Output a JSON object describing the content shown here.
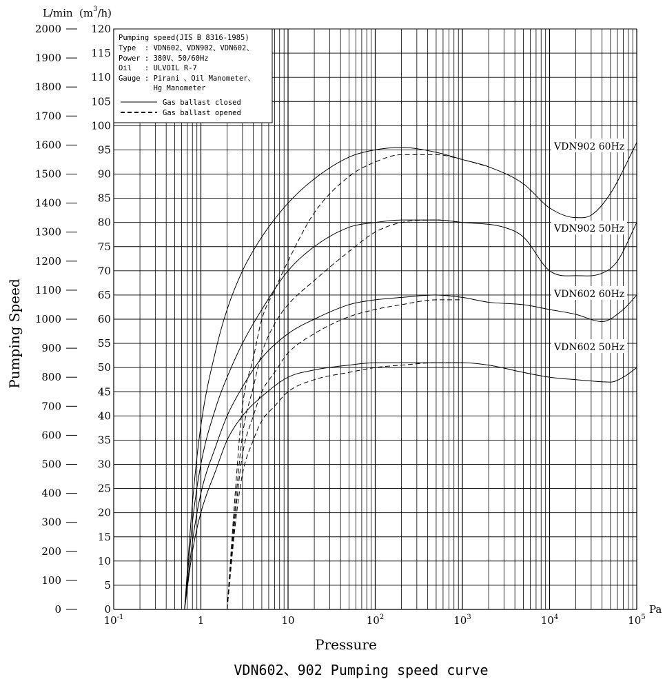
{
  "chart_data": {
    "type": "line",
    "title": "VDN602、902 Pumping speed curve",
    "xlabel": "Pressure",
    "x_unit": "Pa",
    "x_scale": "log",
    "xlim": [
      0.1,
      100000
    ],
    "x_tick_labels": [
      {
        "base": "10",
        "exp": "-1",
        "value": 0.1
      },
      {
        "base": "1",
        "exp": "",
        "value": 1
      },
      {
        "base": "10",
        "exp": "",
        "value": 10
      },
      {
        "base": "10",
        "exp": "2",
        "value": 100
      },
      {
        "base": "10",
        "exp": "3",
        "value": 1000
      },
      {
        "base": "10",
        "exp": "4",
        "value": 10000
      },
      {
        "base": "10",
        "exp": "5",
        "value": 100000
      }
    ],
    "ylabel": "Pumping Speed",
    "y_left_unit": "L/min",
    "y_right_unit_prefix": "(m",
    "y_right_unit_exp": "3",
    "y_right_unit_suffix": "/h)",
    "y_left_ticks": [
      "0",
      "100",
      "200",
      "300",
      "400",
      "500",
      "600",
      "700",
      "800",
      "900",
      "1000",
      "1100",
      "1200",
      "1300",
      "1400",
      "1500",
      "1600",
      "1700",
      "1800",
      "1900",
      "2000"
    ],
    "y_right_ticks": [
      "0",
      "5",
      "10",
      "15",
      "20",
      "25",
      "30",
      "35",
      "40",
      "45",
      "50",
      "55",
      "60",
      "65",
      "70",
      "75",
      "80",
      "85",
      "90",
      "95",
      "100",
      "105",
      "110",
      "115",
      "120"
    ],
    "ylim_m3h": [
      0,
      120
    ],
    "grid": true,
    "legend": {
      "position": "top-left",
      "lines": [
        "Pumping speed(JIS B 8316-1985)",
        "Type  : VDN602、VDN902、VDN602、",
        "Power : 380V、50/60Hz",
        "Oil   : ULVOIL R-7",
        "Gauge : Pirani 、Oil Manometer、",
        "        Hg Manometer"
      ],
      "entries": [
        {
          "label": "Gas ballast closed",
          "style": "solid"
        },
        {
          "label": "Gas ballast opened",
          "style": "dashed"
        }
      ]
    },
    "series": [
      {
        "name": "VDN902  60Hz",
        "ballast": "closed",
        "style": "solid",
        "points": [
          [
            0.65,
            0
          ],
          [
            0.8,
            22
          ],
          [
            1,
            38
          ],
          [
            1.5,
            54
          ],
          [
            2,
            62
          ],
          [
            3,
            70
          ],
          [
            5,
            77
          ],
          [
            10,
            84
          ],
          [
            20,
            89
          ],
          [
            50,
            93.5
          ],
          [
            100,
            95
          ],
          [
            200,
            95.5
          ],
          [
            500,
            94.5
          ],
          [
            1000,
            93
          ],
          [
            2000,
            91.5
          ],
          [
            5000,
            88
          ],
          [
            10000,
            83
          ],
          [
            20000,
            81
          ],
          [
            30000,
            81.5
          ],
          [
            50000,
            86
          ],
          [
            100000,
            96.5
          ]
        ]
      },
      {
        "name": "VDN902  60Hz",
        "ballast": "opened",
        "style": "dashed",
        "points": [
          [
            2,
            0
          ],
          [
            2.5,
            25
          ],
          [
            3,
            42
          ],
          [
            4,
            52
          ],
          [
            5,
            60
          ],
          [
            7,
            66
          ],
          [
            10,
            72
          ],
          [
            20,
            82
          ],
          [
            50,
            89.5
          ],
          [
            100,
            92.5
          ],
          [
            200,
            94
          ],
          [
            500,
            94
          ],
          [
            1000,
            93
          ],
          [
            2000,
            91.5
          ]
        ]
      },
      {
        "name": "VDN902  50Hz",
        "ballast": "closed",
        "style": "solid",
        "points": [
          [
            0.65,
            0
          ],
          [
            0.8,
            18
          ],
          [
            1,
            30
          ],
          [
            1.5,
            42
          ],
          [
            2,
            48
          ],
          [
            3,
            55
          ],
          [
            5,
            62
          ],
          [
            10,
            70
          ],
          [
            20,
            75
          ],
          [
            50,
            79
          ],
          [
            100,
            80
          ],
          [
            200,
            80.5
          ],
          [
            500,
            80.5
          ],
          [
            1000,
            80
          ],
          [
            3000,
            79
          ],
          [
            5000,
            77
          ],
          [
            10000,
            70
          ],
          [
            20000,
            69
          ],
          [
            40000,
            69.5
          ],
          [
            60000,
            72
          ],
          [
            100000,
            80
          ]
        ]
      },
      {
        "name": "VDN902  50Hz",
        "ballast": "opened",
        "style": "dashed",
        "points": [
          [
            2,
            0
          ],
          [
            2.5,
            22
          ],
          [
            3,
            36
          ],
          [
            4,
            46
          ],
          [
            5,
            53
          ],
          [
            7,
            59
          ],
          [
            10,
            63
          ],
          [
            20,
            68
          ],
          [
            50,
            74
          ],
          [
            100,
            78
          ],
          [
            200,
            80
          ],
          [
            500,
            80.5
          ],
          [
            1000,
            80
          ]
        ]
      },
      {
        "name": "VDN602  60Hz",
        "ballast": "closed",
        "style": "solid",
        "points": [
          [
            0.65,
            0
          ],
          [
            0.8,
            14
          ],
          [
            1,
            24
          ],
          [
            1.5,
            34
          ],
          [
            2,
            40
          ],
          [
            3,
            46
          ],
          [
            5,
            52
          ],
          [
            10,
            57
          ],
          [
            20,
            60
          ],
          [
            50,
            63
          ],
          [
            100,
            64
          ],
          [
            200,
            64.5
          ],
          [
            500,
            65
          ],
          [
            1000,
            64.5
          ],
          [
            2000,
            63.5
          ],
          [
            5000,
            63
          ],
          [
            10000,
            62
          ],
          [
            20000,
            61
          ],
          [
            40000,
            59.5
          ],
          [
            70000,
            62
          ],
          [
            100000,
            65
          ]
        ]
      },
      {
        "name": "VDN602  60Hz",
        "ballast": "opened",
        "style": "dashed",
        "points": [
          [
            2,
            0
          ],
          [
            2.5,
            20
          ],
          [
            3,
            32
          ],
          [
            4,
            40
          ],
          [
            5,
            45
          ],
          [
            7,
            49
          ],
          [
            10,
            53
          ],
          [
            20,
            57
          ],
          [
            50,
            60.5
          ],
          [
            100,
            62
          ],
          [
            200,
            63
          ],
          [
            500,
            64
          ],
          [
            1000,
            64
          ]
        ]
      },
      {
        "name": "VDN602  50Hz",
        "ballast": "closed",
        "style": "solid",
        "points": [
          [
            0.65,
            0
          ],
          [
            0.8,
            12
          ],
          [
            1,
            20
          ],
          [
            1.5,
            29
          ],
          [
            2,
            35
          ],
          [
            3,
            40
          ],
          [
            5,
            44
          ],
          [
            10,
            48
          ],
          [
            20,
            49.5
          ],
          [
            50,
            50.5
          ],
          [
            100,
            51
          ],
          [
            200,
            51
          ],
          [
            500,
            51
          ],
          [
            1000,
            51
          ],
          [
            2000,
            50.5
          ],
          [
            5000,
            49
          ],
          [
            10000,
            48
          ],
          [
            20000,
            47.5
          ],
          [
            50000,
            47
          ],
          [
            70000,
            48
          ],
          [
            100000,
            50
          ]
        ]
      },
      {
        "name": "VDN602  50Hz",
        "ballast": "opened",
        "style": "dashed",
        "points": [
          [
            2,
            0
          ],
          [
            2.5,
            18
          ],
          [
            3,
            28
          ],
          [
            4,
            35
          ],
          [
            5,
            39
          ],
          [
            7,
            42
          ],
          [
            10,
            45
          ],
          [
            20,
            47.5
          ],
          [
            50,
            49
          ],
          [
            100,
            50
          ],
          [
            200,
            50.5
          ],
          [
            500,
            51
          ],
          [
            1000,
            51
          ]
        ]
      }
    ],
    "series_labels": [
      {
        "text": "VDN902  60Hz",
        "y_m3h": 95.5
      },
      {
        "text": "VDN902  50Hz",
        "y_m3h": 78.5
      },
      {
        "text": "VDN602  60Hz",
        "y_m3h": 65
      },
      {
        "text": "VDN602  50Hz",
        "y_m3h": 54
      }
    ]
  }
}
